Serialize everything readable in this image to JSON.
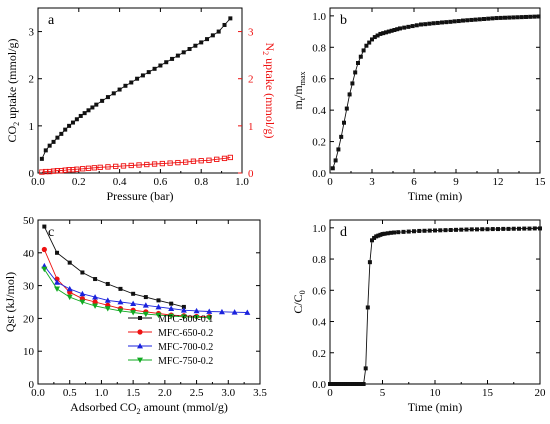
{
  "colors": {
    "black": "#111111",
    "red": "#ee1111",
    "blue": "#1a22dd",
    "green": "#11aa22",
    "axis": "#000000"
  },
  "chart_data": [
    {
      "panel": "a",
      "type": "line",
      "xlabel": "Pressure (bar)",
      "ylabel_left": {
        "main": "CO",
        "sub": "2",
        "rest": " uptake (mmol/g)"
      },
      "ylabel_right": {
        "main": "N",
        "sub": "2",
        "rest": " uptake (mmol/g)"
      },
      "xlim": [
        0,
        1.05
      ],
      "ylim": [
        0,
        3.5
      ],
      "xticks": [
        "0.0",
        "0.2",
        "0.4",
        "0.6",
        "0.8",
        "1.0"
      ],
      "yticks": [
        "0",
        "1",
        "2",
        "3"
      ],
      "yticks_right": [
        "0",
        "1",
        "2",
        "3"
      ],
      "series": [
        {
          "marker": "filled-square",
          "color": "#111111",
          "axis": "left",
          "x": [
            0.02,
            0.04,
            0.06,
            0.08,
            0.1,
            0.12,
            0.14,
            0.16,
            0.18,
            0.2,
            0.22,
            0.24,
            0.26,
            0.28,
            0.3,
            0.33,
            0.36,
            0.39,
            0.42,
            0.45,
            0.48,
            0.51,
            0.54,
            0.57,
            0.6,
            0.63,
            0.66,
            0.69,
            0.72,
            0.75,
            0.78,
            0.81,
            0.84,
            0.87,
            0.9,
            0.93,
            0.96,
            0.99
          ],
          "y": [
            0.3,
            0.48,
            0.58,
            0.66,
            0.75,
            0.83,
            0.92,
            1.0,
            1.07,
            1.14,
            1.21,
            1.27,
            1.33,
            1.39,
            1.45,
            1.53,
            1.61,
            1.69,
            1.77,
            1.85,
            1.92,
            2.0,
            2.07,
            2.14,
            2.21,
            2.28,
            2.35,
            2.42,
            2.49,
            2.56,
            2.63,
            2.7,
            2.77,
            2.84,
            2.92,
            3.0,
            3.14,
            3.28
          ]
        },
        {
          "marker": "open-square",
          "color": "#ee1111",
          "axis": "right",
          "x": [
            0.02,
            0.04,
            0.06,
            0.08,
            0.1,
            0.12,
            0.14,
            0.16,
            0.18,
            0.2,
            0.23,
            0.26,
            0.29,
            0.32,
            0.36,
            0.4,
            0.44,
            0.48,
            0.52,
            0.56,
            0.6,
            0.64,
            0.68,
            0.72,
            0.76,
            0.8,
            0.84,
            0.88,
            0.92,
            0.96,
            0.99
          ],
          "y": [
            0.02,
            0.03,
            0.03,
            0.04,
            0.05,
            0.05,
            0.06,
            0.07,
            0.07,
            0.08,
            0.09,
            0.1,
            0.11,
            0.12,
            0.13,
            0.14,
            0.15,
            0.16,
            0.17,
            0.18,
            0.19,
            0.2,
            0.21,
            0.22,
            0.23,
            0.25,
            0.26,
            0.27,
            0.29,
            0.31,
            0.33
          ]
        }
      ]
    },
    {
      "panel": "b",
      "type": "line",
      "xlabel": "Time (min)",
      "ylabel": {
        "m": "m",
        "t": "t",
        "slash": "/m",
        "max": "max"
      },
      "xlim": [
        0,
        15
      ],
      "ylim": [
        0,
        1.05
      ],
      "xticks": [
        "0",
        "3",
        "6",
        "9",
        "12",
        "15"
      ],
      "yticks": [
        "0.0",
        "0.2",
        "0.4",
        "0.6",
        "0.8",
        "1.0"
      ],
      "series": [
        {
          "marker": "filled-square",
          "color": "#111111",
          "x": [
            0.2,
            0.4,
            0.6,
            0.8,
            1.0,
            1.2,
            1.4,
            1.6,
            1.8,
            2.0,
            2.2,
            2.4,
            2.6,
            2.8,
            3.0,
            3.2,
            3.4,
            3.6,
            3.8,
            4.0,
            4.2,
            4.4,
            4.6,
            4.8,
            5.0,
            5.3,
            5.6,
            5.9,
            6.2,
            6.5,
            6.8,
            7.1,
            7.4,
            7.7,
            8.0,
            8.3,
            8.6,
            8.9,
            9.2,
            9.5,
            9.8,
            10.1,
            10.4,
            10.7,
            11.0,
            11.3,
            11.6,
            11.9,
            12.2,
            12.5,
            12.8,
            13.1,
            13.4,
            13.7,
            14.0,
            14.3,
            14.6,
            14.9
          ],
          "y": [
            0.03,
            0.08,
            0.15,
            0.23,
            0.32,
            0.41,
            0.5,
            0.57,
            0.64,
            0.7,
            0.74,
            0.78,
            0.81,
            0.83,
            0.85,
            0.865,
            0.875,
            0.885,
            0.89,
            0.895,
            0.9,
            0.905,
            0.91,
            0.915,
            0.92,
            0.925,
            0.93,
            0.935,
            0.94,
            0.945,
            0.947,
            0.95,
            0.953,
            0.955,
            0.958,
            0.96,
            0.962,
            0.965,
            0.967,
            0.97,
            0.972,
            0.974,
            0.976,
            0.978,
            0.98,
            0.982,
            0.984,
            0.986,
            0.987,
            0.988,
            0.989,
            0.99,
            0.991,
            0.992,
            0.993,
            0.994,
            0.995,
            0.996
          ]
        }
      ]
    },
    {
      "panel": "c",
      "type": "line",
      "xlabel": {
        "pre": "Adsorbed CO",
        "sub": "2",
        "post": " amount (mmol/g)"
      },
      "ylabel": "Qst (kJ/mol)",
      "xlim": [
        0,
        3.5
      ],
      "ylim": [
        0,
        50
      ],
      "xticks": [
        "0.0",
        "0.5",
        "1.0",
        "1.5",
        "2.0",
        "2.5",
        "3.0",
        "3.5"
      ],
      "yticks": [
        "0",
        "10",
        "20",
        "30",
        "40",
        "50"
      ],
      "legend": {
        "placement": "lower-right"
      },
      "series": [
        {
          "name": "MFC-600-0.1",
          "marker": "square",
          "color": "#111111",
          "x": [
            0.1,
            0.3,
            0.5,
            0.7,
            0.9,
            1.1,
            1.3,
            1.5,
            1.7,
            1.9,
            2.1,
            2.3
          ],
          "y": [
            48,
            40,
            37,
            34,
            32,
            30.5,
            29,
            27.5,
            26.5,
            25.5,
            24.5,
            23.5
          ]
        },
        {
          "name": "MFC-650-0.2",
          "marker": "circle",
          "color": "#ee1111",
          "x": [
            0.1,
            0.3,
            0.5,
            0.7,
            0.9,
            1.1,
            1.3,
            1.5,
            1.7,
            1.9,
            2.1,
            2.3,
            2.5,
            2.7
          ],
          "y": [
            41,
            32,
            28,
            26,
            25,
            24,
            23,
            22.5,
            22,
            21.5,
            21,
            20.8,
            20.6,
            20.5
          ]
        },
        {
          "name": "MFC-700-0.2",
          "marker": "triangle-up",
          "color": "#1a22dd",
          "x": [
            0.1,
            0.3,
            0.5,
            0.7,
            0.9,
            1.1,
            1.3,
            1.5,
            1.7,
            1.9,
            2.1,
            2.3,
            2.5,
            2.7,
            2.9,
            3.1,
            3.3
          ],
          "y": [
            36,
            31,
            29,
            27.5,
            26.5,
            25.5,
            25,
            24.5,
            24,
            23.5,
            23,
            22.5,
            22.3,
            22.1,
            22,
            21.9,
            21.8
          ]
        },
        {
          "name": "MFC-750-0.2",
          "marker": "triangle-down",
          "color": "#11aa22",
          "x": [
            0.1,
            0.3,
            0.5,
            0.7,
            0.9,
            1.1,
            1.3,
            1.5,
            1.7,
            1.9,
            2.1,
            2.3,
            2.5,
            2.7
          ],
          "y": [
            35,
            29,
            26.5,
            25,
            23.8,
            23,
            22.3,
            21.8,
            21.3,
            21,
            20.7,
            20.5,
            20.3,
            20.2
          ]
        }
      ]
    },
    {
      "panel": "d",
      "type": "line",
      "xlabel": "Time (min)",
      "ylabel": {
        "c": "C/C",
        "sub": "0"
      },
      "xlim": [
        0,
        20
      ],
      "ylim": [
        0,
        1.05
      ],
      "xticks": [
        "0",
        "5",
        "10",
        "15",
        "20"
      ],
      "yticks": [
        "0.0",
        "0.2",
        "0.4",
        "0.6",
        "0.8",
        "1.0"
      ],
      "series": [
        {
          "marker": "filled-square",
          "color": "#111111",
          "x": [
            0.0,
            0.2,
            0.4,
            0.6,
            0.8,
            1.0,
            1.2,
            1.4,
            1.6,
            1.8,
            2.0,
            2.2,
            2.4,
            2.6,
            2.8,
            3.0,
            3.2,
            3.4,
            3.6,
            3.8,
            4.0,
            4.2,
            4.4,
            4.6,
            4.8,
            5.0,
            5.2,
            5.5,
            5.8,
            6.1,
            6.5,
            7.0,
            7.5,
            8.0,
            8.5,
            9.0,
            9.5,
            10.0,
            10.5,
            11.0,
            11.5,
            12.0,
            12.5,
            13.0,
            13.5,
            14.0,
            14.5,
            15.0,
            15.5,
            16.0,
            16.5,
            17.0,
            17.5,
            18.0,
            18.5,
            19.0,
            19.5,
            20.0
          ],
          "y": [
            0.0,
            0.0,
            0.0,
            0.0,
            0.0,
            0.0,
            0.0,
            0.0,
            0.0,
            0.0,
            0.0,
            0.0,
            0.0,
            0.0,
            0.0,
            0.0,
            0.0,
            0.1,
            0.49,
            0.78,
            0.92,
            0.935,
            0.945,
            0.95,
            0.955,
            0.96,
            0.962,
            0.965,
            0.968,
            0.97,
            0.972,
            0.974,
            0.976,
            0.978,
            0.98,
            0.981,
            0.982,
            0.983,
            0.984,
            0.985,
            0.986,
            0.987,
            0.988,
            0.989,
            0.99,
            0.99,
            0.991,
            0.991,
            0.992,
            0.992,
            0.993,
            0.993,
            0.994,
            0.994,
            0.995,
            0.995,
            0.996,
            0.996
          ]
        }
      ]
    }
  ]
}
